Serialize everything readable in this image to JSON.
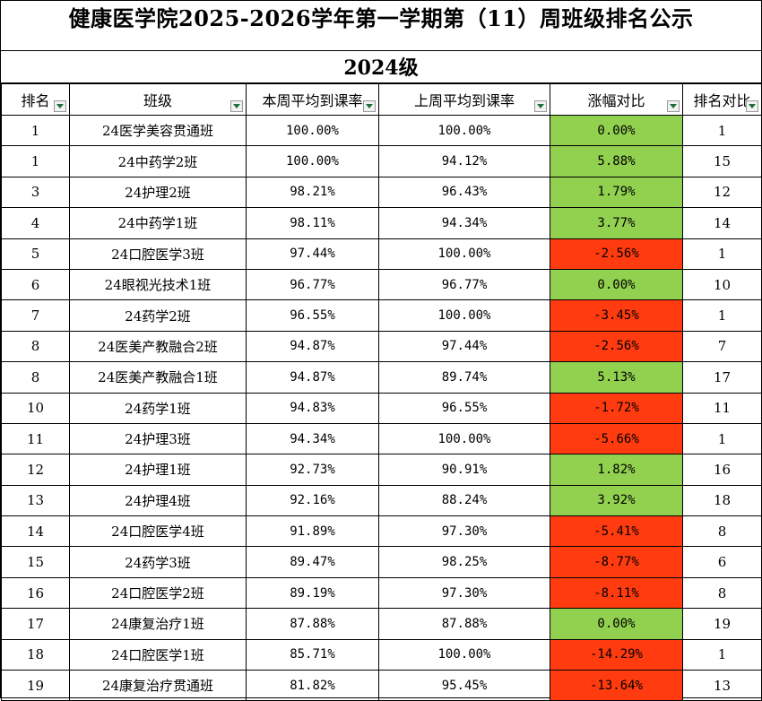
{
  "title": "健康医学院2025-2026学年第一学期第（11）周班级排名公示",
  "subtitle": "2024级",
  "colors": {
    "increase": "#92d050",
    "decrease": "#ff3b0f"
  },
  "headers": [
    "排名",
    "班级",
    "本周平均到课率",
    "上周平均到课率",
    "涨幅对比",
    "排名对比"
  ],
  "rows": [
    {
      "rank": "1",
      "class": "24医学美容贯通班",
      "this_week": "100.00%",
      "last_week": "100.00%",
      "change": "0.00%",
      "trend": "pos",
      "rank_compare": "1"
    },
    {
      "rank": "1",
      "class": "24中药学2班",
      "this_week": "100.00%",
      "last_week": "94.12%",
      "change": "5.88%",
      "trend": "pos",
      "rank_compare": "15"
    },
    {
      "rank": "3",
      "class": "24护理2班",
      "this_week": "98.21%",
      "last_week": "96.43%",
      "change": "1.79%",
      "trend": "pos",
      "rank_compare": "12"
    },
    {
      "rank": "4",
      "class": "24中药学1班",
      "this_week": "98.11%",
      "last_week": "94.34%",
      "change": "3.77%",
      "trend": "pos",
      "rank_compare": "14"
    },
    {
      "rank": "5",
      "class": "24口腔医学3班",
      "this_week": "97.44%",
      "last_week": "100.00%",
      "change": "-2.56%",
      "trend": "neg",
      "rank_compare": "1"
    },
    {
      "rank": "6",
      "class": "24眼视光技术1班",
      "this_week": "96.77%",
      "last_week": "96.77%",
      "change": "0.00%",
      "trend": "pos",
      "rank_compare": "10"
    },
    {
      "rank": "7",
      "class": "24药学2班",
      "this_week": "96.55%",
      "last_week": "100.00%",
      "change": "-3.45%",
      "trend": "neg",
      "rank_compare": "1"
    },
    {
      "rank": "8",
      "class": "24医美产教融合2班",
      "this_week": "94.87%",
      "last_week": "97.44%",
      "change": "-2.56%",
      "trend": "neg",
      "rank_compare": "7"
    },
    {
      "rank": "8",
      "class": "24医美产教融合1班",
      "this_week": "94.87%",
      "last_week": "89.74%",
      "change": "5.13%",
      "trend": "pos",
      "rank_compare": "17"
    },
    {
      "rank": "10",
      "class": "24药学1班",
      "this_week": "94.83%",
      "last_week": "96.55%",
      "change": "-1.72%",
      "trend": "neg",
      "rank_compare": "11"
    },
    {
      "rank": "11",
      "class": "24护理3班",
      "this_week": "94.34%",
      "last_week": "100.00%",
      "change": "-5.66%",
      "trend": "neg",
      "rank_compare": "1"
    },
    {
      "rank": "12",
      "class": "24护理1班",
      "this_week": "92.73%",
      "last_week": "90.91%",
      "change": "1.82%",
      "trend": "pos",
      "rank_compare": "16"
    },
    {
      "rank": "13",
      "class": "24护理4班",
      "this_week": "92.16%",
      "last_week": "88.24%",
      "change": "3.92%",
      "trend": "pos",
      "rank_compare": "18"
    },
    {
      "rank": "14",
      "class": "24口腔医学4班",
      "this_week": "91.89%",
      "last_week": "97.30%",
      "change": "-5.41%",
      "trend": "neg",
      "rank_compare": "8"
    },
    {
      "rank": "15",
      "class": "24药学3班",
      "this_week": "89.47%",
      "last_week": "98.25%",
      "change": "-8.77%",
      "trend": "neg",
      "rank_compare": "6"
    },
    {
      "rank": "16",
      "class": "24口腔医学2班",
      "this_week": "89.19%",
      "last_week": "97.30%",
      "change": "-8.11%",
      "trend": "neg",
      "rank_compare": "8"
    },
    {
      "rank": "17",
      "class": "24康复治疗1班",
      "this_week": "87.88%",
      "last_week": "87.88%",
      "change": "0.00%",
      "trend": "pos",
      "rank_compare": "19"
    },
    {
      "rank": "18",
      "class": "24口腔医学1班",
      "this_week": "85.71%",
      "last_week": "100.00%",
      "change": "-14.29%",
      "trend": "neg",
      "rank_compare": "1"
    },
    {
      "rank": "19",
      "class": "24康复治疗贯通班",
      "this_week": "81.82%",
      "last_week": "95.45%",
      "change": "-13.64%",
      "trend": "neg",
      "rank_compare": "13"
    }
  ]
}
